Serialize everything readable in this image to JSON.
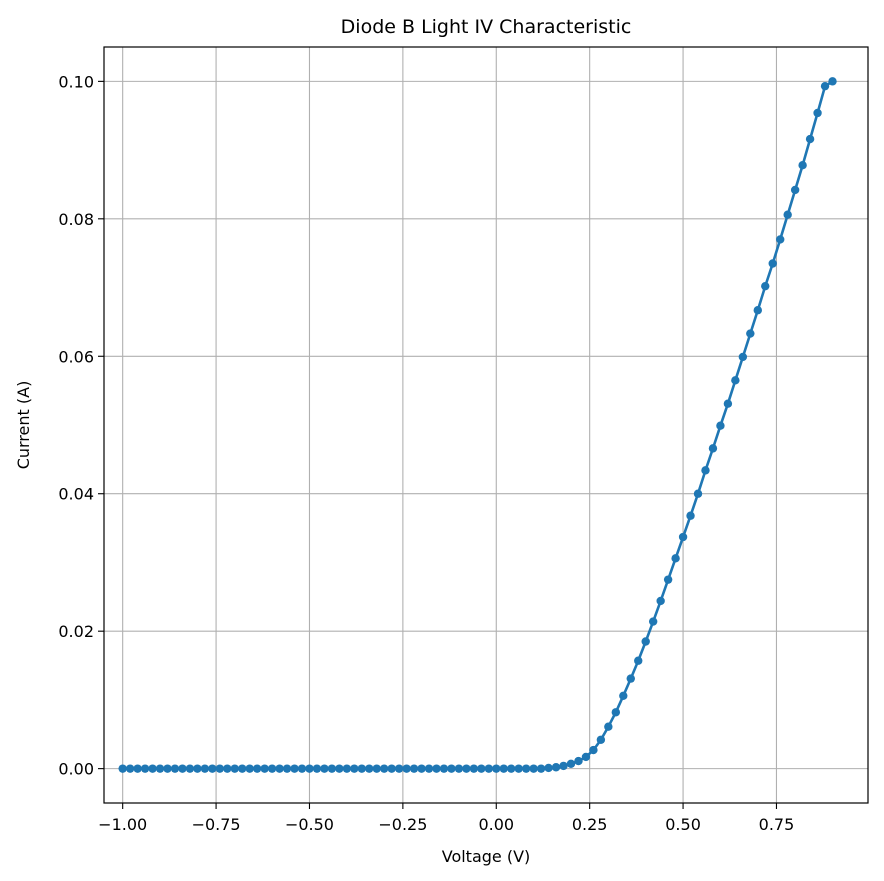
{
  "chart_data": {
    "type": "line",
    "title": "Diode B Light IV Characteristic",
    "xlabel": "Voltage (V)",
    "ylabel": "Current (A)",
    "xlim": [
      -1.05,
      0.995
    ],
    "ylim": [
      -0.005,
      0.105
    ],
    "grid": true,
    "marker": "circle",
    "xticks": [
      -1.0,
      -0.75,
      -0.5,
      -0.25,
      0.0,
      0.25,
      0.5,
      0.75
    ],
    "xtick_labels": [
      "−1.00",
      "−0.75",
      "−0.50",
      "−0.25",
      "0.00",
      "0.25",
      "0.50",
      "0.75"
    ],
    "yticks": [
      0.0,
      0.02,
      0.04,
      0.06,
      0.08,
      0.1
    ],
    "ytick_labels": [
      "0.00",
      "0.02",
      "0.04",
      "0.06",
      "0.08",
      "0.10"
    ],
    "series": [
      {
        "color": "#1f77b4",
        "x": [
          -1.0,
          -0.98,
          -0.96,
          -0.94,
          -0.92,
          -0.9,
          -0.88,
          -0.86,
          -0.84,
          -0.82,
          -0.8,
          -0.78,
          -0.76,
          -0.74,
          -0.72,
          -0.7,
          -0.68,
          -0.66,
          -0.64,
          -0.62,
          -0.6,
          -0.58,
          -0.56,
          -0.54,
          -0.52,
          -0.5,
          -0.48,
          -0.46,
          -0.44,
          -0.42,
          -0.4,
          -0.38,
          -0.36,
          -0.34,
          -0.32,
          -0.3,
          -0.28,
          -0.26,
          -0.24,
          -0.22,
          -0.2,
          -0.18,
          -0.16,
          -0.14,
          -0.12,
          -0.1,
          -0.08,
          -0.06,
          -0.04,
          -0.02,
          0.0,
          0.02,
          0.04,
          0.06,
          0.08,
          0.1,
          0.12,
          0.14,
          0.16,
          0.18,
          0.2,
          0.22,
          0.24,
          0.26,
          0.28,
          0.3,
          0.32,
          0.34,
          0.36,
          0.38,
          0.4,
          0.42,
          0.44,
          0.46,
          0.48,
          0.5,
          0.52,
          0.54,
          0.56,
          0.58,
          0.6,
          0.62,
          0.64,
          0.66,
          0.68,
          0.7,
          0.72,
          0.74,
          0.76,
          0.78,
          0.8,
          0.82,
          0.84,
          0.86,
          0.88,
          0.9
        ],
        "y": [
          0.0,
          0.0,
          0.0,
          0.0,
          0.0,
          0.0,
          0.0,
          0.0,
          0.0,
          0.0,
          0.0,
          0.0,
          0.0,
          0.0,
          0.0,
          0.0,
          0.0,
          0.0,
          0.0,
          0.0,
          0.0,
          0.0,
          0.0,
          0.0,
          0.0,
          0.0,
          0.0,
          0.0,
          0.0,
          0.0,
          0.0,
          0.0,
          0.0,
          0.0,
          0.0,
          0.0,
          0.0,
          0.0,
          0.0,
          0.0,
          0.0,
          0.0,
          0.0,
          0.0,
          0.0,
          0.0,
          0.0,
          0.0,
          0.0,
          0.0,
          0.0,
          0.0,
          0.0,
          0.0,
          0.0,
          0.0,
          0.0,
          0.0001,
          0.0002,
          0.0004,
          0.0007,
          0.0011,
          0.0017,
          0.0027,
          0.0042,
          0.0061,
          0.0082,
          0.0106,
          0.0131,
          0.0157,
          0.0185,
          0.0214,
          0.0244,
          0.0275,
          0.0306,
          0.0337,
          0.0368,
          0.04,
          0.0434,
          0.0466,
          0.0499,
          0.0531,
          0.0565,
          0.0599,
          0.0633,
          0.0667,
          0.0702,
          0.0735,
          0.077,
          0.0806,
          0.0842,
          0.0878,
          0.0916,
          0.0954,
          0.0993,
          0.1
        ]
      }
    ]
  }
}
